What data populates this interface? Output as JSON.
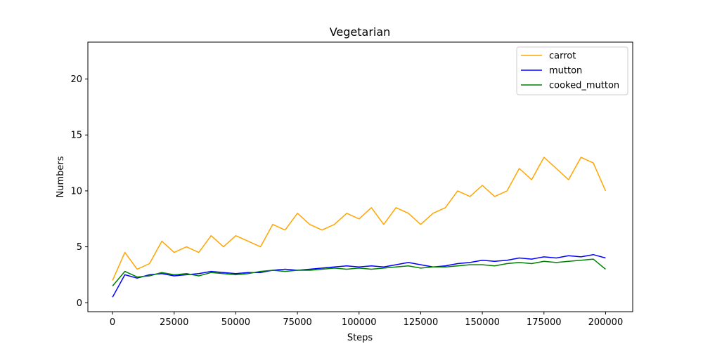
{
  "chart_data": {
    "type": "line",
    "title": "Vegetarian",
    "xlabel": "Steps",
    "ylabel": "Numbers",
    "xlim": [
      -10000,
      211000
    ],
    "ylim": [
      -0.8,
      23.3
    ],
    "xticks": [
      0,
      25000,
      50000,
      75000,
      100000,
      125000,
      150000,
      175000,
      200000
    ],
    "yticks": [
      0,
      5,
      10,
      15,
      20
    ],
    "grid": false,
    "legend_position": "top-right",
    "series": [
      {
        "name": "carrot",
        "color": "#ffa500",
        "x": [
          0,
          5000,
          10000,
          15000,
          20000,
          25000,
          30000,
          35000,
          40000,
          45000,
          50000,
          55000,
          60000,
          65000,
          70000,
          75000,
          80000,
          85000,
          90000,
          95000,
          100000,
          105000,
          110000,
          115000,
          120000,
          125000,
          130000,
          135000,
          140000,
          145000,
          150000,
          155000,
          160000,
          165000,
          170000,
          175000,
          180000,
          185000,
          190000,
          195000,
          200000
        ],
        "y": [
          2.0,
          4.5,
          3.0,
          3.5,
          5.5,
          4.5,
          5.0,
          4.5,
          6.0,
          5.0,
          6.0,
          5.5,
          5.0,
          7.0,
          6.5,
          8.0,
          7.0,
          6.5,
          7.0,
          8.0,
          7.5,
          8.5,
          7.0,
          8.5,
          8.0,
          7.0,
          8.0,
          8.5,
          10.0,
          9.5,
          10.5,
          9.5,
          10.0,
          12.0,
          11.0,
          13.0,
          12.0,
          11.0,
          13.0,
          12.5,
          10.0
        ]
      },
      {
        "name": "mutton",
        "color": "#0000ff",
        "x": [
          0,
          5000,
          10000,
          15000,
          20000,
          25000,
          30000,
          35000,
          40000,
          45000,
          50000,
          55000,
          60000,
          65000,
          70000,
          75000,
          80000,
          85000,
          90000,
          95000,
          100000,
          105000,
          110000,
          115000,
          120000,
          125000,
          130000,
          135000,
          140000,
          145000,
          150000,
          155000,
          160000,
          165000,
          170000,
          175000,
          180000,
          185000,
          190000,
          195000,
          200000
        ],
        "y": [
          0.5,
          2.5,
          2.2,
          2.5,
          2.6,
          2.4,
          2.5,
          2.6,
          2.8,
          2.7,
          2.6,
          2.7,
          2.7,
          2.9,
          3.0,
          2.9,
          3.0,
          3.1,
          3.2,
          3.3,
          3.2,
          3.3,
          3.2,
          3.4,
          3.6,
          3.4,
          3.2,
          3.3,
          3.5,
          3.6,
          3.8,
          3.7,
          3.8,
          4.0,
          3.9,
          4.1,
          4.0,
          4.2,
          4.1,
          4.3,
          4.0
        ]
      },
      {
        "name": "cooked_mutton",
        "color": "#008000",
        "x": [
          0,
          5000,
          10000,
          15000,
          20000,
          25000,
          30000,
          35000,
          40000,
          45000,
          50000,
          55000,
          60000,
          65000,
          70000,
          75000,
          80000,
          85000,
          90000,
          95000,
          100000,
          105000,
          110000,
          115000,
          120000,
          125000,
          130000,
          135000,
          140000,
          145000,
          150000,
          155000,
          160000,
          165000,
          170000,
          175000,
          180000,
          185000,
          190000,
          195000,
          200000
        ],
        "y": [
          1.5,
          2.8,
          2.3,
          2.4,
          2.7,
          2.5,
          2.6,
          2.4,
          2.7,
          2.6,
          2.5,
          2.6,
          2.8,
          2.9,
          2.8,
          2.9,
          2.9,
          3.0,
          3.1,
          3.0,
          3.1,
          3.0,
          3.1,
          3.2,
          3.3,
          3.1,
          3.2,
          3.2,
          3.3,
          3.4,
          3.4,
          3.3,
          3.5,
          3.6,
          3.5,
          3.7,
          3.6,
          3.7,
          3.8,
          3.9,
          3.0
        ]
      }
    ]
  }
}
